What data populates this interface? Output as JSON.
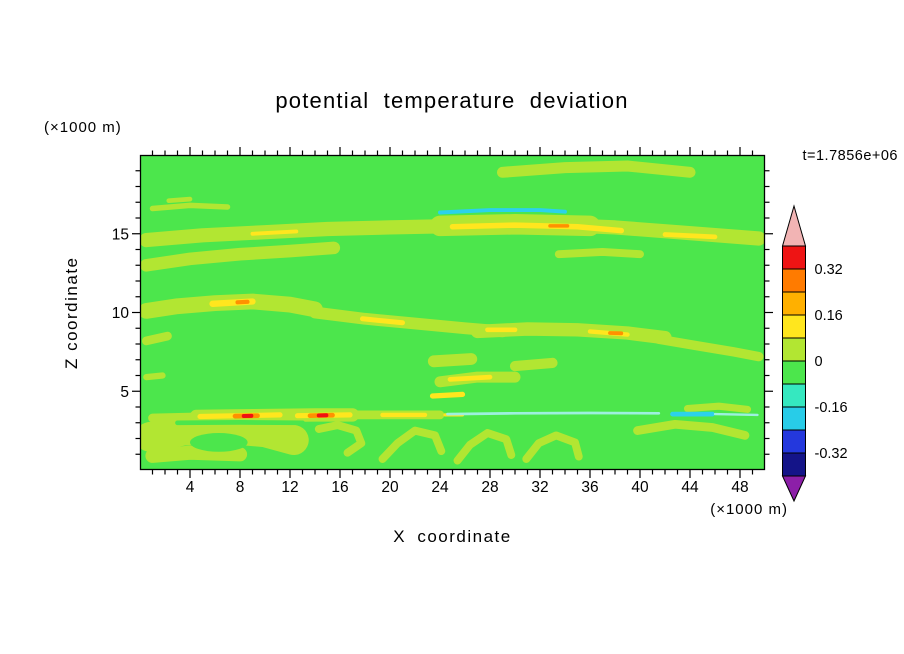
{
  "title": "potential temperature deviation",
  "time_annotation": "t=1.7856e+06",
  "y_axis_unit": "(×1000 m)",
  "x_axis_unit": "(×1000 m)",
  "y_axis_label": "Z coordinate",
  "x_axis_label": "X coordinate",
  "chart_data": {
    "type": "heatmap",
    "subtype": "filled_contour",
    "title": "potential temperature deviation",
    "xlabel": "X coordinate",
    "ylabel": "Z coordinate",
    "x_unit": "(×1000 m)",
    "y_unit": "(×1000 m)",
    "time_annotation": "t=1.7856e+06",
    "xlim": [
      0,
      50
    ],
    "ylim": [
      0,
      20
    ],
    "x_ticks": [
      4,
      8,
      12,
      16,
      20,
      24,
      28,
      32,
      36,
      40,
      44,
      48
    ],
    "y_ticks": [
      5,
      10,
      15
    ],
    "x_minor_step": 1,
    "y_minor_step": 1,
    "grid": false,
    "legend_position": "right-colorbar",
    "colorbar": {
      "labels": [
        "0.32",
        "0.16",
        "0",
        "-0.16",
        "-0.32"
      ],
      "levels": [
        0.4,
        0.32,
        0.24,
        0.16,
        0.08,
        0,
        -0.08,
        -0.16,
        -0.24,
        -0.32,
        -0.4
      ],
      "segment_colors": [
        "#ee1414",
        "#ff7b00",
        "#ffb000",
        "#ffe61e",
        "#b2e632",
        "#4ce64c",
        "#35e8c0",
        "#28cce8",
        "#2438dd",
        "#141488"
      ],
      "over_color": "#f2b4b4",
      "under_color": "#8c1fa8"
    },
    "field_background_color": "#4ce64c",
    "field_summary": "Mostly uniform green field (deviation near 0) with thin horizontal yellow-green/yellow streaks near z=15, z=13.5, z=10.5, z=9, z=7, z=5.8; strongest maxima (orange-red, >0.32) along z=3.4 at x=8.6 and x=14.6; cool cyan streaks (<-0.08) near z=16.5 (x 24-34) and along z=3.5 (x 24-46); curled vortex-like structures below z=3.",
    "field_features_approx": [
      {
        "c": "#b2e632",
        "w": 0.9,
        "p": [
          [
            0.5,
            14.6
          ],
          [
            5,
            14.9
          ],
          [
            10,
            15.1
          ],
          [
            15,
            15.3
          ],
          [
            20,
            15.4
          ],
          [
            26,
            15.5
          ],
          [
            32,
            15.6
          ],
          [
            38,
            15.4
          ],
          [
            43,
            15.1
          ],
          [
            49.5,
            14.7
          ]
        ]
      },
      {
        "c": "#b2e632",
        "w": 1.3,
        "p": [
          [
            24,
            15.5
          ],
          [
            30,
            15.6
          ],
          [
            36,
            15.5
          ]
        ]
      },
      {
        "c": "#b2e632",
        "w": 0.8,
        "p": [
          [
            0.5,
            13.0
          ],
          [
            4,
            13.4
          ],
          [
            8,
            13.7
          ],
          [
            12,
            13.9
          ],
          [
            15.5,
            14.1
          ]
        ]
      },
      {
        "c": "#b2e632",
        "w": 0.35,
        "p": [
          [
            1,
            16.6
          ],
          [
            4,
            16.8
          ],
          [
            7,
            16.7
          ]
        ]
      },
      {
        "c": "#b2e632",
        "w": 0.3,
        "p": [
          [
            2.3,
            17.1
          ],
          [
            4,
            17.2
          ]
        ]
      },
      {
        "c": "#b2e632",
        "w": 0.7,
        "p": [
          [
            29,
            18.9
          ],
          [
            34,
            19.2
          ],
          [
            39,
            19.3
          ],
          [
            44,
            18.9
          ]
        ]
      },
      {
        "c": "#b2e632",
        "w": 1.0,
        "p": [
          [
            0.5,
            10.1
          ],
          [
            3,
            10.4
          ],
          [
            6,
            10.6
          ],
          [
            9,
            10.7
          ],
          [
            12,
            10.5
          ],
          [
            14,
            10.2
          ]
        ]
      },
      {
        "c": "#b2e632",
        "w": 0.75,
        "p": [
          [
            14,
            10.0
          ],
          [
            18,
            9.6
          ],
          [
            22,
            9.3
          ],
          [
            26,
            9.0
          ],
          [
            29,
            8.8
          ]
        ]
      },
      {
        "c": "#b2e632",
        "w": 0.85,
        "p": [
          [
            27,
            8.8
          ],
          [
            31,
            8.95
          ],
          [
            35,
            8.9
          ],
          [
            39,
            8.7
          ],
          [
            42,
            8.4
          ]
        ]
      },
      {
        "c": "#b2e632",
        "w": 0.6,
        "p": [
          [
            41.5,
            8.3
          ],
          [
            44.5,
            7.9
          ],
          [
            47.5,
            7.5
          ],
          [
            49.5,
            7.2
          ]
        ]
      },
      {
        "c": "#b2e632",
        "w": 0.75,
        "p": [
          [
            23.5,
            6.9
          ],
          [
            26.5,
            7.05
          ]
        ]
      },
      {
        "c": "#b2e632",
        "w": 0.65,
        "p": [
          [
            30,
            6.6
          ],
          [
            33,
            6.8
          ]
        ]
      },
      {
        "c": "#b2e632",
        "w": 0.7,
        "p": [
          [
            24,
            5.6
          ],
          [
            27,
            5.9
          ],
          [
            30,
            5.9
          ]
        ]
      },
      {
        "c": "#b2e632",
        "w": 0.55,
        "p": [
          [
            0.5,
            8.2
          ],
          [
            2.2,
            8.5
          ]
        ]
      },
      {
        "c": "#b2e632",
        "w": 0.4,
        "p": [
          [
            0.5,
            5.9
          ],
          [
            1.8,
            6.0
          ]
        ]
      },
      {
        "c": "#b2e632",
        "w": 0.5,
        "p": [
          [
            33.5,
            13.7
          ],
          [
            37,
            13.85
          ],
          [
            40,
            13.7
          ]
        ]
      },
      {
        "c": "#b2e632",
        "w": 0.55,
        "p": [
          [
            1,
            3.3
          ],
          [
            6,
            3.4
          ],
          [
            12,
            3.5
          ],
          [
            18,
            3.5
          ],
          [
            24,
            3.5
          ]
        ]
      },
      {
        "c": "#b2e632",
        "w": 0.85,
        "p": [
          [
            4.5,
            3.4
          ],
          [
            9,
            3.45
          ],
          [
            14,
            3.5
          ],
          [
            17,
            3.5
          ]
        ]
      },
      {
        "c": "#b2e632",
        "w": 1.9,
        "p": [
          [
            0.8,
            2.1
          ],
          [
            3.5,
            2.5
          ],
          [
            7,
            2.6
          ],
          [
            10,
            2.4
          ],
          [
            12.3,
            1.9
          ]
        ]
      },
      {
        "c": "#b2e632",
        "w": 0.9,
        "p": [
          [
            1,
            0.9
          ],
          [
            4,
            1.1
          ],
          [
            8,
            1.0
          ]
        ]
      },
      {
        "c": "#b2e632",
        "w": 0.5,
        "p": [
          [
            14.3,
            2.6
          ],
          [
            15.8,
            2.85
          ],
          [
            17.3,
            2.5
          ],
          [
            17.7,
            1.7
          ],
          [
            16.6,
            1.1
          ]
        ]
      },
      {
        "c": "#b2e632",
        "w": 0.5,
        "p": [
          [
            19.4,
            0.7
          ],
          [
            20.6,
            1.7
          ],
          [
            22,
            2.5
          ],
          [
            23.6,
            2.2
          ],
          [
            24.1,
            1.2
          ]
        ]
      },
      {
        "c": "#b2e632",
        "w": 0.5,
        "p": [
          [
            25.4,
            0.6
          ],
          [
            26.4,
            1.6
          ],
          [
            27.8,
            2.35
          ],
          [
            29.3,
            1.95
          ],
          [
            29.7,
            0.95
          ]
        ]
      },
      {
        "c": "#b2e632",
        "w": 0.5,
        "p": [
          [
            30.9,
            0.7
          ],
          [
            31.9,
            1.7
          ],
          [
            33.3,
            2.2
          ],
          [
            34.8,
            1.75
          ],
          [
            35.1,
            0.85
          ]
        ]
      },
      {
        "c": "#b2e632",
        "w": 0.55,
        "p": [
          [
            39.8,
            2.5
          ],
          [
            42.8,
            2.9
          ],
          [
            45.8,
            2.7
          ],
          [
            48.4,
            2.2
          ]
        ]
      },
      {
        "c": "#b2e632",
        "w": 0.45,
        "p": [
          [
            43.8,
            3.9
          ],
          [
            46.3,
            4.05
          ],
          [
            48.6,
            3.85
          ]
        ]
      },
      {
        "c": "#4ce64c",
        "e": [
          6.3,
          1.75,
          2.3,
          0.6
        ]
      },
      {
        "c": "#4ce64c",
        "w": 0.3,
        "p": [
          [
            3,
            3.0
          ],
          [
            8,
            3.02
          ],
          [
            13,
            3.0
          ]
        ]
      },
      {
        "c": "#ffe61e",
        "w": 0.35,
        "p": [
          [
            25,
            15.45
          ],
          [
            30,
            15.55
          ],
          [
            35,
            15.45
          ],
          [
            38.5,
            15.2
          ]
        ]
      },
      {
        "c": "#ffe61e",
        "w": 0.3,
        "p": [
          [
            42,
            14.95
          ],
          [
            46,
            14.8
          ]
        ]
      },
      {
        "c": "#ffe61e",
        "w": 0.25,
        "p": [
          [
            9,
            15.0
          ],
          [
            12.5,
            15.15
          ]
        ]
      },
      {
        "c": "#ffe61e",
        "w": 0.4,
        "p": [
          [
            5.8,
            10.55
          ],
          [
            9,
            10.7
          ]
        ]
      },
      {
        "c": "#ffe61e",
        "w": 0.32,
        "p": [
          [
            17.8,
            9.6
          ],
          [
            21,
            9.35
          ]
        ]
      },
      {
        "c": "#ffe61e",
        "w": 0.3,
        "p": [
          [
            27.8,
            8.9
          ],
          [
            30,
            8.9
          ]
        ]
      },
      {
        "c": "#ffe61e",
        "w": 0.28,
        "p": [
          [
            36,
            8.8
          ],
          [
            39,
            8.6
          ]
        ]
      },
      {
        "c": "#ffe61e",
        "w": 0.3,
        "p": [
          [
            24.8,
            5.75
          ],
          [
            28,
            5.9
          ]
        ]
      },
      {
        "c": "#ffe61e",
        "w": 0.33,
        "p": [
          [
            23.4,
            4.7
          ],
          [
            25.8,
            4.8
          ]
        ]
      },
      {
        "c": "#ffe61e",
        "w": 0.33,
        "p": [
          [
            4.8,
            3.4
          ],
          [
            8,
            3.45
          ],
          [
            11.2,
            3.5
          ]
        ]
      },
      {
        "c": "#ffe61e",
        "w": 0.33,
        "p": [
          [
            12.6,
            3.45
          ],
          [
            16.8,
            3.5
          ]
        ]
      },
      {
        "c": "#ffe61e",
        "w": 0.28,
        "p": [
          [
            19.4,
            3.5
          ],
          [
            22.8,
            3.5
          ]
        ]
      },
      {
        "c": "#ffe61e",
        "w": 0.2,
        "p": [
          [
            24.4,
            3.5
          ],
          [
            25.8,
            3.5
          ]
        ]
      },
      {
        "c": "#ff9100",
        "w": 0.3,
        "p": [
          [
            7.6,
            3.42
          ],
          [
            9.4,
            3.45
          ]
        ]
      },
      {
        "c": "#ff9100",
        "w": 0.3,
        "p": [
          [
            13.6,
            3.45
          ],
          [
            15.4,
            3.48
          ]
        ]
      },
      {
        "c": "#ff9100",
        "w": 0.22,
        "p": [
          [
            32.8,
            15.5
          ],
          [
            34.2,
            15.5
          ]
        ]
      },
      {
        "c": "#ff9100",
        "w": 0.24,
        "p": [
          [
            37.6,
            8.7
          ],
          [
            38.5,
            8.68
          ]
        ]
      },
      {
        "c": "#ff9100",
        "w": 0.26,
        "p": [
          [
            7.8,
            10.65
          ],
          [
            8.6,
            10.68
          ]
        ]
      },
      {
        "c": "#f01010",
        "w": 0.26,
        "p": [
          [
            8.3,
            3.43
          ],
          [
            8.9,
            3.44
          ]
        ]
      },
      {
        "c": "#f01010",
        "w": 0.26,
        "p": [
          [
            14.3,
            3.46
          ],
          [
            14.9,
            3.47
          ]
        ]
      },
      {
        "c": "#2cd2ea",
        "w": 0.25,
        "p": [
          [
            24,
            16.35
          ],
          [
            28,
            16.5
          ],
          [
            32,
            16.5
          ],
          [
            34,
            16.4
          ]
        ]
      },
      {
        "c": "#9df0df",
        "w": 0.17,
        "p": [
          [
            24.6,
            3.55
          ],
          [
            30,
            3.6
          ],
          [
            36,
            3.62
          ],
          [
            41.5,
            3.6
          ]
        ]
      },
      {
        "c": "#2cd2ea",
        "w": 0.3,
        "p": [
          [
            42.6,
            3.55
          ],
          [
            45.8,
            3.55
          ]
        ]
      },
      {
        "c": "#9df0df",
        "w": 0.15,
        "p": [
          [
            46,
            3.55
          ],
          [
            49.4,
            3.5
          ]
        ]
      }
    ]
  }
}
